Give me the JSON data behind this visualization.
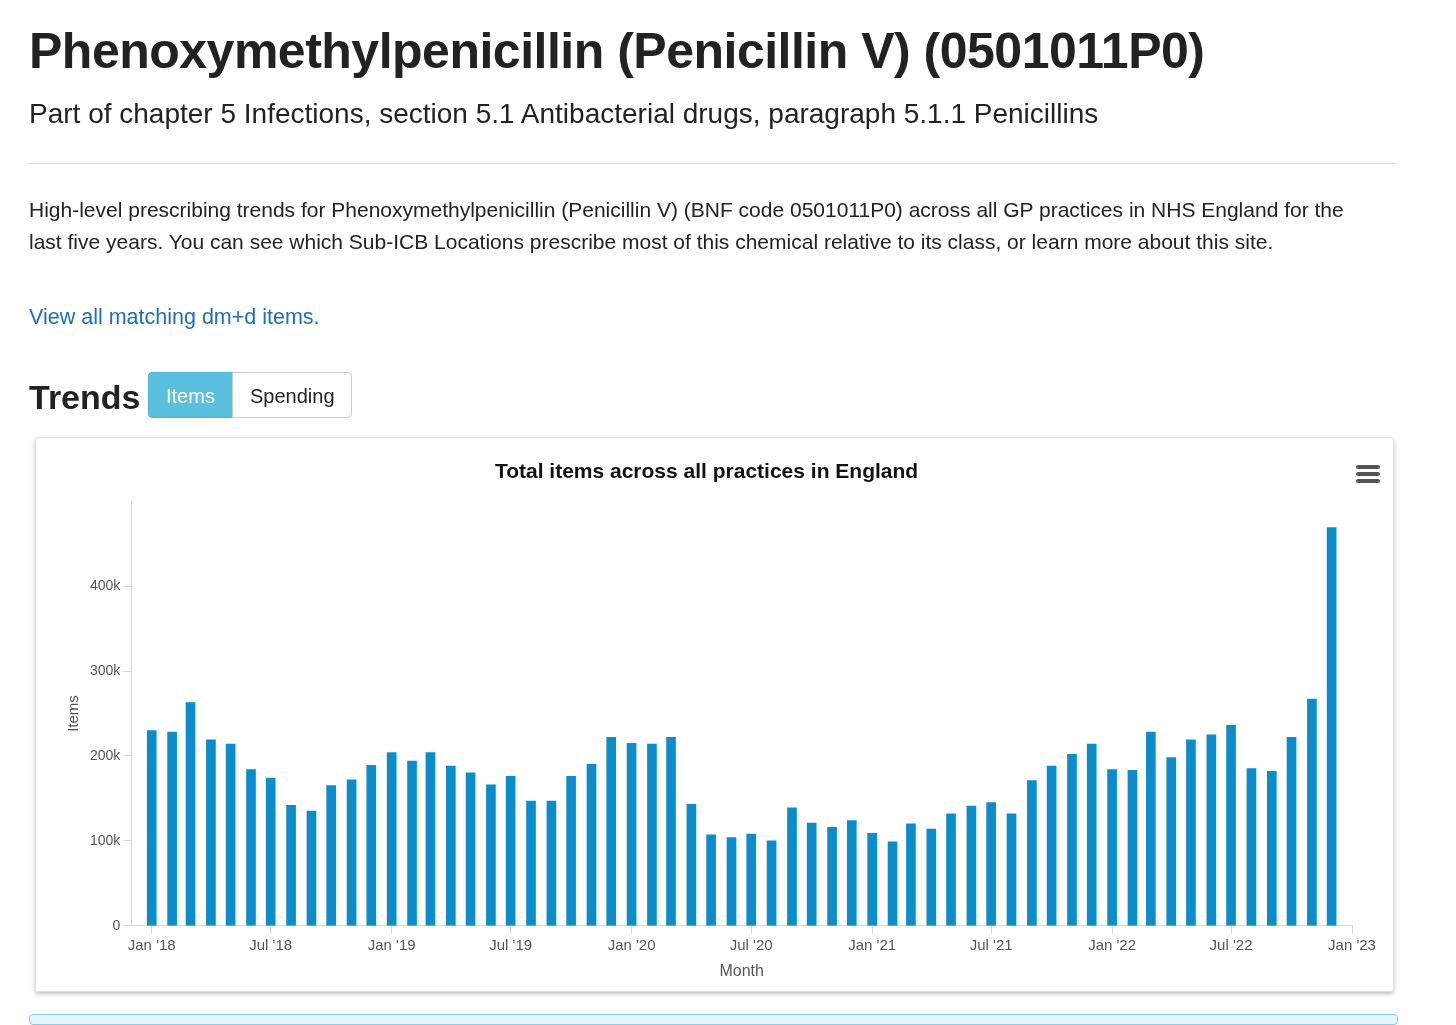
{
  "chart_data": {
    "type": "bar",
    "title": "Total items across all practices in England",
    "xlabel": "Month",
    "ylabel": "Items",
    "annotations": [
      "Phenoxymethylpenicillin (Penicillin V) (0501011P0)",
      "Part of chapter 5 Infections, section 5.1 Antibacterial drugs, paragraph 5.1.1 Penicillins",
      "High-level prescribing trends for Phenoxymethylpenicillin (Penicillin V) (BNF code 0501011P0) across all GP practices in NHS England for the last five years. You can see which Sub-ICB Locations prescribe most of this chemical relative to its class, or learn more about this site.",
      "View all matching dm+d items.",
      "Trends",
      "Items",
      "Spending"
    ],
    "x": [
      "2018-01",
      "2018-02",
      "2018-03",
      "2018-04",
      "2018-05",
      "2018-06",
      "2018-07",
      "2018-08",
      "2018-09",
      "2018-10",
      "2018-11",
      "2018-12",
      "2019-01",
      "2019-02",
      "2019-03",
      "2019-04",
      "2019-05",
      "2019-06",
      "2019-07",
      "2019-08",
      "2019-09",
      "2019-10",
      "2019-11",
      "2019-12",
      "2020-01",
      "2020-02",
      "2020-03",
      "2020-04",
      "2020-05",
      "2020-06",
      "2020-07",
      "2020-08",
      "2020-09",
      "2020-10",
      "2020-11",
      "2020-12",
      "2021-01",
      "2021-02",
      "2021-03",
      "2021-04",
      "2021-05",
      "2021-06",
      "2021-07",
      "2021-08",
      "2021-09",
      "2021-10",
      "2021-11",
      "2021-12",
      "2022-01",
      "2022-02",
      "2022-03",
      "2022-04",
      "2022-05",
      "2022-06",
      "2022-07",
      "2022-08",
      "2022-09",
      "2022-10",
      "2022-11",
      "2022-12"
    ],
    "values": [
      230000,
      228000,
      263000,
      219000,
      214000,
      184000,
      174000,
      142000,
      135000,
      165000,
      172000,
      189000,
      204000,
      194000,
      204000,
      188000,
      180000,
      166000,
      176000,
      147000,
      147000,
      176000,
      190000,
      222000,
      215000,
      214000,
      222000,
      143000,
      107000,
      104000,
      108000,
      100000,
      139000,
      121000,
      116000,
      124000,
      109000,
      99000,
      120000,
      114000,
      132000,
      141000,
      145000,
      132000,
      171000,
      188000,
      202000,
      214000,
      184000,
      183000,
      228000,
      198000,
      219000,
      225000,
      236000,
      185000,
      182000,
      222000,
      267000,
      469000
    ],
    "color": "#0c8dcb",
    "xlim": [
      "2017-12",
      "2023-01"
    ],
    "xticks": [
      {
        "value": "2018-01",
        "label": "Jan '18"
      },
      {
        "value": "2018-07",
        "label": "Jul '18"
      },
      {
        "value": "2019-01",
        "label": "Jan '19"
      },
      {
        "value": "2019-07",
        "label": "Jul '19"
      },
      {
        "value": "2020-01",
        "label": "Jan '20"
      },
      {
        "value": "2020-07",
        "label": "Jul '20"
      },
      {
        "value": "2021-01",
        "label": "Jan '21"
      },
      {
        "value": "2021-07",
        "label": "Jul '21"
      },
      {
        "value": "2022-01",
        "label": "Jan '22"
      },
      {
        "value": "2022-07",
        "label": "Jul '22"
      },
      {
        "value": "2023-01",
        "label": "Jan '23"
      }
    ],
    "ylim": [
      0,
      500000
    ],
    "yticks": [
      0,
      {
        "value": 100000,
        "label": "100k"
      },
      {
        "value": 200000,
        "label": "200k"
      },
      {
        "value": 300000,
        "label": "300k"
      },
      {
        "value": 400000,
        "label": "400k"
      }
    ],
    "grid": false,
    "legend": false
  }
}
